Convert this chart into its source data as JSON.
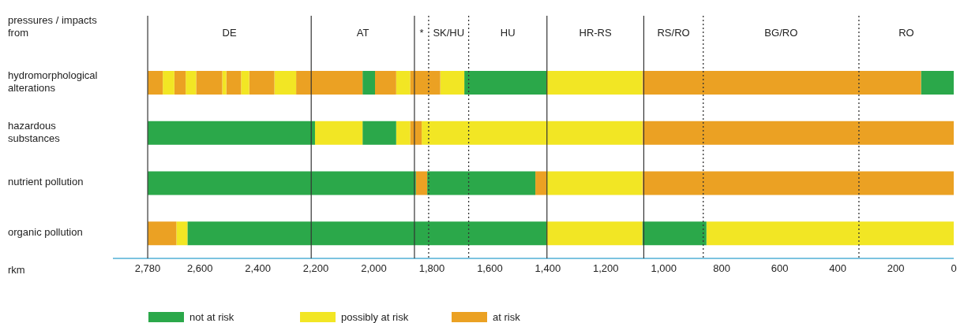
{
  "chart_data": {
    "type": "bar",
    "orientation": "horizontal",
    "stacked": true,
    "categories": [
      "hydromorphological alterations",
      "hazardous substances",
      "nutrient pollution",
      "organic pollution"
    ],
    "ylabel": "pressures / impacts from",
    "xlabel": "rkm",
    "xlim": [
      2900,
      0
    ],
    "xticks": [
      {
        "value": 2780,
        "label": "2,780"
      },
      {
        "value": 2600,
        "label": "2,600"
      },
      {
        "value": 2400,
        "label": "2,400"
      },
      {
        "value": 2200,
        "label": "2,200"
      },
      {
        "value": 2000,
        "label": "2,000"
      },
      {
        "value": 1800,
        "label": "1,800"
      },
      {
        "value": 1600,
        "label": "1,600"
      },
      {
        "value": 1400,
        "label": "1,400"
      },
      {
        "value": 1200,
        "label": "1,200"
      },
      {
        "value": 1000,
        "label": "1,000"
      },
      800,
      600,
      400,
      200,
      0
    ],
    "legend": "bottom",
    "annotations": [
      "DE",
      "AT",
      "*",
      "SK/HU",
      "HU",
      "HR-RS",
      "RS/RO",
      "BG/RO",
      "RO"
    ],
    "ref_lines": [
      {
        "axis": "x",
        "value": 2780,
        "color": "#333333",
        "line_style": "solid"
      },
      {
        "axis": "x",
        "value": 2216,
        "color": "#333333",
        "line_style": "solid"
      },
      {
        "axis": "x",
        "value": 1860,
        "color": "#333333",
        "line_style": "solid"
      },
      {
        "axis": "x",
        "value": 1811,
        "color": "#333333",
        "line_style": "dotted"
      },
      {
        "axis": "x",
        "value": 1673,
        "color": "#333333",
        "line_style": "dotted"
      },
      {
        "axis": "x",
        "value": 1403,
        "color": "#333333",
        "line_style": "solid"
      },
      {
        "axis": "x",
        "value": 1069,
        "color": "#333333",
        "line_style": "solid"
      },
      {
        "axis": "x",
        "value": 864,
        "color": "#333333",
        "line_style": "dotted"
      },
      {
        "axis": "x",
        "value": 327,
        "color": "#333333",
        "line_style": "dotted"
      }
    ],
    "series": [
      {
        "name": "not at risk",
        "color": "#2ba84a",
        "values": [
          113,
          null,
          null,
          null
        ]
      },
      {
        "name": "possibly at risk",
        "color": "#f2e624",
        "values": [
          null,
          null,
          null,
          853
        ]
      },
      {
        "name": "at risk",
        "color": "#eba123",
        "values": [
          961,
          null,
          null,
          null
        ]
      },
      {
        "color": "#f2e624",
        "values": [
          331,
          null,
          null,
          null
        ]
      },
      {
        "color": "#2ba84a",
        "values": [
          283,
          null,
          null,
          null
        ]
      },
      {
        "color": "#f2e624",
        "values": [
          83,
          null,
          null,
          null
        ]
      },
      {
        "color": "#eba123",
        "values": [
          104,
          null,
          null,
          null
        ]
      },
      {
        "color": "#f2e624",
        "values": [
          48,
          null,
          null,
          null
        ]
      },
      {
        "color": "#eba123",
        "values": [
          73,
          null,
          null,
          null
        ]
      },
      {
        "color": "#2ba84a",
        "values": [
          43,
          null,
          null,
          null
        ]
      },
      {
        "color": "#eba123",
        "values": [
          229,
          null,
          null,
          null
        ]
      },
      {
        "color": "#f2e624",
        "values": [
          75,
          null,
          null,
          null
        ]
      },
      {
        "color": "#eba123",
        "values": [
          87,
          null,
          null,
          null
        ]
      },
      {
        "color": "#f2e624",
        "values": [
          28,
          null,
          null,
          null
        ]
      },
      {
        "color": "#eba123",
        "values": [
          51,
          null,
          null,
          null
        ]
      },
      {
        "color": "#f2e624",
        "values": [
          14,
          null,
          null,
          null
        ]
      },
      {
        "color": "#eba123",
        "values": [
          90,
          null,
          null,
          null
        ]
      },
      {
        "color": "#f2e624",
        "values": [
          36,
          null,
          null,
          null
        ]
      },
      {
        "color": "#eba123",
        "values": [
          39,
          null,
          null,
          null
        ]
      },
      {
        "color": "#f2e624",
        "values": [
          40,
          null,
          null,
          null
        ]
      },
      {
        "color": "#eba123",
        "values": [
          52,
          null,
          null,
          null
        ]
      },
      {
        "color": "#eba123",
        "values": [
          null,
          1074,
          null,
          null
        ]
      },
      {
        "color": "#f2e624",
        "values": [
          null,
          761,
          null,
          null
        ]
      },
      {
        "color": "#eba123",
        "values": [
          null,
          40,
          null,
          null
        ]
      },
      {
        "color": "#f2e624",
        "values": [
          null,
          48,
          null,
          null
        ]
      },
      {
        "color": "#2ba84a",
        "values": [
          null,
          116,
          null,
          null
        ]
      },
      {
        "color": "#f2e624",
        "values": [
          null,
          164,
          null,
          null
        ]
      },
      {
        "color": "#2ba84a",
        "values": [
          null,
          577,
          null,
          null
        ]
      },
      {
        "color": "#eba123",
        "values": [
          null,
          null,
          1074,
          null
        ]
      },
      {
        "color": "#f2e624",
        "values": [
          null,
          null,
          331,
          null
        ]
      },
      {
        "color": "#eba123",
        "values": [
          null,
          null,
          38,
          null
        ]
      },
      {
        "color": "#2ba84a",
        "values": [
          null,
          null,
          373,
          null
        ]
      },
      {
        "color": "#eba123",
        "values": [
          null,
          null,
          39,
          null
        ]
      },
      {
        "color": "#2ba84a",
        "values": [
          null,
          null,
          925,
          null
        ]
      },
      {
        "color": "#2ba84a",
        "values": [
          null,
          null,
          null,
          221
        ]
      },
      {
        "color": "#f2e624",
        "values": [
          null,
          null,
          null,
          331
        ]
      },
      {
        "color": "#2ba84a",
        "values": [
          null,
          null,
          null,
          1238
        ]
      },
      {
        "color": "#f2e624",
        "values": [
          null,
          null,
          null,
          38
        ]
      },
      {
        "color": "#eba123",
        "values": [
          null,
          null,
          null,
          99
        ]
      }
    ]
  }
}
